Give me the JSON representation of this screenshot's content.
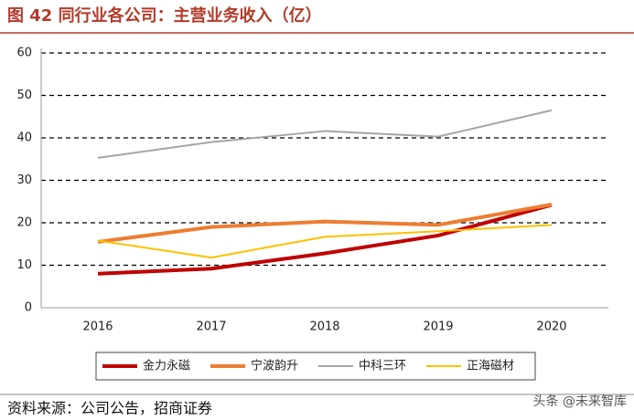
{
  "chart_data": {
    "type": "line",
    "title": "图 42  同行业各公司：主营业务收入（亿）",
    "categories": [
      "2016",
      "2017",
      "2018",
      "2019",
      "2020"
    ],
    "series": [
      {
        "name": "金力永磁",
        "color": "#c00000",
        "values": [
          8,
          9.2,
          12.8,
          17,
          24.2
        ]
      },
      {
        "name": "宁波韵升",
        "color": "#ed7d31",
        "values": [
          15.5,
          19,
          20.3,
          19.5,
          24.3
        ]
      },
      {
        "name": "中科三环",
        "color": "#a5a5a5",
        "values": [
          35.3,
          39,
          41.6,
          40.3,
          46.5
        ]
      },
      {
        "name": "正海磁材",
        "color": "#ffc000",
        "values": [
          15.8,
          11.8,
          16.7,
          18,
          19.5
        ]
      }
    ],
    "ylim": [
      0,
      60
    ],
    "yticks": [
      0,
      10,
      20,
      30,
      40,
      50,
      60
    ],
    "grid": true,
    "source": "资料来源：公司公告，招商证券"
  },
  "watermark": "头条 @未来智库"
}
